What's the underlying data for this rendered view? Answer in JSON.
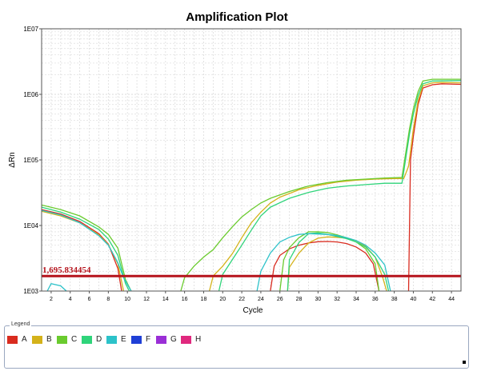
{
  "chart_data": {
    "type": "line",
    "title": "Amplification Plot",
    "xlabel": "Cycle",
    "ylabel": "ΔRn",
    "x_scale": "linear",
    "y_scale": "log",
    "xlim": [
      1,
      45
    ],
    "ylim": [
      1000,
      10000000
    ],
    "x_ticks": [
      2,
      4,
      6,
      8,
      10,
      12,
      14,
      16,
      18,
      20,
      22,
      24,
      26,
      28,
      30,
      32,
      34,
      36,
      38,
      40,
      42,
      44
    ],
    "y_ticks": [
      {
        "value": 1000,
        "label": "1E03"
      },
      {
        "value": 10000,
        "label": "1E04"
      },
      {
        "value": 100000,
        "label": "1E05"
      },
      {
        "value": 1000000,
        "label": "1E06"
      },
      {
        "value": 10000000,
        "label": "1E07"
      }
    ],
    "grid": true,
    "threshold": {
      "value": 1695.834454,
      "label": "1,695.834454",
      "color": "#b5121b"
    },
    "series": [
      {
        "name": "A",
        "color": "#d92b1f",
        "points": [
          [
            1,
            17500
          ],
          [
            3,
            15000
          ],
          [
            5,
            11500
          ],
          [
            7,
            7500
          ],
          [
            8,
            5200
          ],
          [
            9,
            2200
          ],
          [
            9.4,
            1000
          ],
          [
            25,
            1000
          ],
          [
            25.4,
            2400
          ],
          [
            26,
            3500
          ],
          [
            27,
            4400
          ],
          [
            28,
            5000
          ],
          [
            29,
            5400
          ],
          [
            30,
            5650
          ],
          [
            31,
            5700
          ],
          [
            32,
            5600
          ],
          [
            33,
            5300
          ],
          [
            34,
            4700
          ],
          [
            35,
            3800
          ],
          [
            35.8,
            2600
          ],
          [
            36.4,
            1000
          ],
          [
            39.5,
            1000
          ],
          [
            39.7,
            100000
          ],
          [
            40,
            230000
          ],
          [
            40.5,
            700000
          ],
          [
            41,
            1250000
          ],
          [
            42,
            1400000
          ],
          [
            43,
            1450000
          ],
          [
            45,
            1420000
          ]
        ]
      },
      {
        "name": "B",
        "color": "#d4b21a",
        "points": [
          [
            1,
            16500
          ],
          [
            3,
            14000
          ],
          [
            5,
            11000
          ],
          [
            7,
            7200
          ],
          [
            8,
            5100
          ],
          [
            9,
            2600
          ],
          [
            9.6,
            1000
          ],
          [
            18.6,
            1000
          ],
          [
            19,
            1700
          ],
          [
            20,
            2400
          ],
          [
            21,
            3700
          ],
          [
            22,
            6500
          ],
          [
            23,
            11000
          ],
          [
            24,
            16000
          ],
          [
            25,
            22000
          ],
          [
            26,
            27000
          ],
          [
            28,
            35000
          ],
          [
            30,
            41000
          ],
          [
            32,
            46000
          ],
          [
            34,
            49000
          ],
          [
            36,
            51000
          ],
          [
            38,
            52000
          ],
          [
            39,
            52000
          ],
          [
            39.5,
            80000
          ],
          [
            40,
            300000
          ],
          [
            40.5,
            800000
          ],
          [
            41,
            1350000
          ],
          [
            42,
            1500000
          ],
          [
            43,
            1520000
          ],
          [
            45,
            1500000
          ],
          [
            26.8,
            1000
          ],
          [
            27,
            2300
          ],
          [
            28,
            3800
          ],
          [
            29,
            5400
          ],
          [
            30,
            6400
          ],
          [
            31,
            6700
          ],
          [
            32,
            6600
          ],
          [
            33,
            6400
          ],
          [
            34,
            5900
          ],
          [
            35,
            4800
          ],
          [
            36,
            3300
          ],
          [
            36.8,
            1600
          ],
          [
            37.2,
            1000
          ]
        ]
      },
      {
        "name": "C",
        "color": "#6acb2e",
        "points": [
          [
            1,
            20500
          ],
          [
            3,
            17500
          ],
          [
            5,
            14000
          ],
          [
            7,
            9500
          ],
          [
            8,
            7300
          ],
          [
            9,
            4500
          ],
          [
            9.8,
            1500
          ],
          [
            10.4,
            1000
          ],
          [
            15.6,
            1000
          ],
          [
            16,
            1600
          ],
          [
            17,
            2400
          ],
          [
            18,
            3300
          ],
          [
            19,
            4300
          ],
          [
            20,
            6500
          ],
          [
            21,
            9500
          ],
          [
            22,
            13500
          ],
          [
            23,
            17500
          ],
          [
            24,
            22000
          ],
          [
            25,
            26000
          ],
          [
            27,
            33000
          ],
          [
            29,
            40000
          ],
          [
            31,
            45000
          ],
          [
            33,
            49000
          ],
          [
            35,
            51000
          ],
          [
            37,
            53000
          ],
          [
            38.8,
            54000
          ],
          [
            39.6,
            300000
          ],
          [
            40,
            600000
          ],
          [
            40.5,
            1100000
          ],
          [
            41,
            1600000
          ],
          [
            42,
            1700000
          ],
          [
            45,
            1700000
          ],
          [
            26,
            1000
          ],
          [
            26.4,
            3000
          ],
          [
            27,
            4600
          ],
          [
            28,
            6500
          ],
          [
            29,
            8000
          ],
          [
            30,
            8000
          ],
          [
            31,
            7800
          ],
          [
            32,
            7200
          ],
          [
            33,
            6500
          ],
          [
            34,
            5600
          ],
          [
            35,
            4400
          ],
          [
            36,
            2600
          ],
          [
            36.4,
            1000
          ]
        ]
      },
      {
        "name": "D",
        "color": "#2fd47a",
        "points": [
          [
            1,
            19000
          ],
          [
            3,
            16000
          ],
          [
            5,
            12500
          ],
          [
            7,
            8700
          ],
          [
            8,
            6200
          ],
          [
            9,
            3500
          ],
          [
            9.8,
            1300
          ],
          [
            10.2,
            1000
          ],
          [
            19.6,
            1000
          ],
          [
            20,
            1800
          ],
          [
            21,
            3000
          ],
          [
            22,
            5000
          ],
          [
            23,
            8500
          ],
          [
            24,
            14000
          ],
          [
            25,
            19000
          ],
          [
            27,
            26000
          ],
          [
            29,
            32000
          ],
          [
            31,
            37000
          ],
          [
            33,
            40000
          ],
          [
            35,
            42000
          ],
          [
            37,
            44000
          ],
          [
            38.8,
            44000
          ],
          [
            39.6,
            250000
          ],
          [
            40,
            500000
          ],
          [
            40.5,
            950000
          ],
          [
            41,
            1450000
          ],
          [
            42,
            1600000
          ],
          [
            45,
            1620000
          ],
          [
            26.8,
            1000
          ],
          [
            27,
            3000
          ],
          [
            28,
            5500
          ],
          [
            29,
            7500
          ],
          [
            30,
            7700
          ],
          [
            31,
            7300
          ],
          [
            32,
            6800
          ],
          [
            33,
            6300
          ],
          [
            34,
            5600
          ],
          [
            35,
            4700
          ],
          [
            36,
            3300
          ],
          [
            37,
            1800
          ],
          [
            37.4,
            1000
          ]
        ]
      },
      {
        "name": "E",
        "color": "#2cc2c9",
        "points": [
          [
            1,
            17000
          ],
          [
            3,
            14500
          ],
          [
            5,
            11000
          ],
          [
            7,
            7000
          ],
          [
            8,
            5000
          ],
          [
            9,
            2700
          ],
          [
            9.6,
            1600
          ],
          [
            10.4,
            1000
          ],
          [
            1.6,
            1000
          ],
          [
            2,
            1300
          ],
          [
            3,
            1200
          ],
          [
            3.6,
            1000
          ],
          [
            23.6,
            1000
          ],
          [
            24,
            2000
          ],
          [
            25,
            3800
          ],
          [
            26,
            5600
          ],
          [
            27,
            6600
          ],
          [
            28,
            7300
          ],
          [
            29,
            7500
          ],
          [
            30,
            7400
          ],
          [
            31,
            7300
          ],
          [
            32,
            7000
          ],
          [
            33,
            6500
          ],
          [
            34,
            5900
          ],
          [
            35,
            5000
          ],
          [
            36,
            3800
          ],
          [
            37,
            2500
          ],
          [
            37.6,
            1000
          ]
        ]
      },
      {
        "name": "F",
        "color": "#1f3fd6",
        "points": []
      },
      {
        "name": "G",
        "color": "#9a2fd6",
        "points": []
      },
      {
        "name": "H",
        "color": "#e0287e",
        "points": []
      }
    ]
  },
  "legend": {
    "title": "Legend",
    "items": [
      {
        "label": "A",
        "color": "#d92b1f"
      },
      {
        "label": "B",
        "color": "#d4b21a"
      },
      {
        "label": "C",
        "color": "#6acb2e"
      },
      {
        "label": "D",
        "color": "#2fd47a"
      },
      {
        "label": "E",
        "color": "#2cc2c9"
      },
      {
        "label": "F",
        "color": "#1f3fd6"
      },
      {
        "label": "G",
        "color": "#9a2fd6"
      },
      {
        "label": "H",
        "color": "#e0287e"
      }
    ]
  }
}
